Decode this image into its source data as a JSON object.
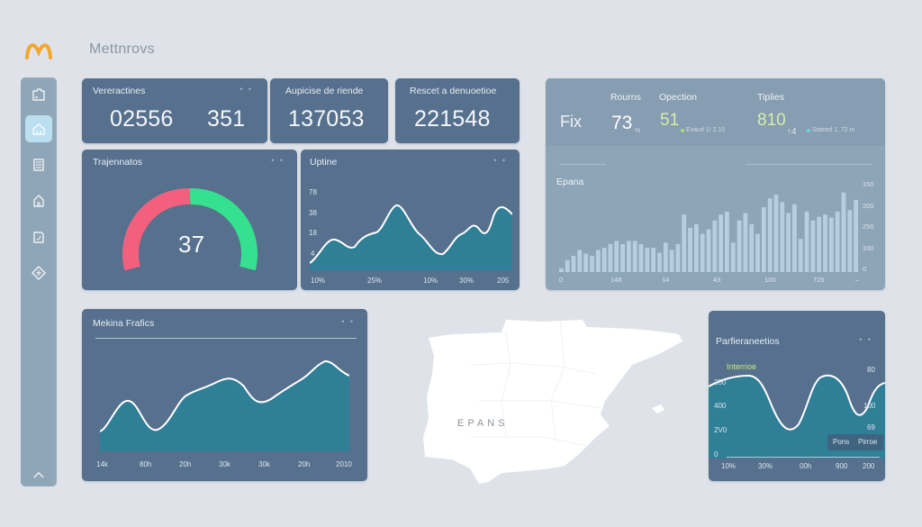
{
  "app": {
    "title": "Mettnrovs",
    "logo_icon": "m-arch-logo"
  },
  "sidebar": {
    "items": [
      {
        "name": "folder-icon",
        "active": false
      },
      {
        "name": "home-icon",
        "active": true
      },
      {
        "name": "document-icon",
        "active": false
      },
      {
        "name": "building-icon",
        "active": false
      },
      {
        "name": "file-chart-icon",
        "active": false
      },
      {
        "name": "puzzle-icon",
        "active": false
      }
    ],
    "collapse_icon": "chevron-up-icon"
  },
  "kpis": [
    {
      "title": "Vereractines",
      "values": [
        "02556",
        "351"
      ],
      "menu": "• •"
    },
    {
      "title": "Aupicise de riende",
      "values": [
        "137053"
      ]
    },
    {
      "title": "Rescet a denuoetioe",
      "values": [
        "221548"
      ]
    }
  ],
  "gauge": {
    "title": "Trajennatos",
    "value": "37",
    "menu": "• •",
    "colors": {
      "left": "#f2607e",
      "right": "#35e08e"
    }
  },
  "uptime": {
    "title": "Uptine",
    "menu": "• •",
    "y_ticks": [
      "78",
      "38",
      "18",
      "4",
      "5"
    ],
    "x_ticks": [
      "10%",
      "25%",
      "10%",
      "30%",
      "205"
    ]
  },
  "stats_panel": {
    "row_label": "Fix",
    "columns": [
      {
        "label": "Rourns",
        "value": "73",
        "unit": "%",
        "color": "#ffffff"
      },
      {
        "label": "Opection",
        "value": "51",
        "sub": "Exaud 1/ 2.10",
        "sub_dot_color": "#a8e070",
        "color": "#d4f0a8"
      },
      {
        "label": "Tiplies",
        "value": "810",
        "unit": "↑4",
        "sub": "Staeed 1, 72 m",
        "sub_dot_color": "#6fd4d4",
        "color": "#d4f0a8"
      }
    ],
    "chart_title": "Epana",
    "y_ticks": [
      "150",
      "200",
      "250",
      "100",
      "0"
    ],
    "x_ticks": [
      "0",
      "148",
      "14",
      "43",
      "100",
      "725",
      "–"
    ]
  },
  "metrics": {
    "title": "Mekina Frafics",
    "menu": "• •",
    "x_ticks": [
      "14k",
      "80h",
      "20h",
      "30k",
      "30k",
      "20h",
      "2010"
    ]
  },
  "map": {
    "label": "EPANS"
  },
  "performance": {
    "title": "Parfieraneetios",
    "menu": "• •",
    "series_label": "Interrioe",
    "y_left": [
      "200",
      "400",
      "2V0",
      "0"
    ],
    "y_right": [
      "80",
      "100",
      "69"
    ],
    "x_ticks": [
      "10%",
      "30%",
      "00h",
      "900",
      "200"
    ],
    "legend": [
      "Pons",
      "Pirroe"
    ]
  },
  "chart_data": [
    {
      "type": "area",
      "title": "Uptine",
      "x": [
        "10%",
        "25%",
        "10%",
        "30%",
        "205"
      ],
      "values": [
        5,
        22,
        15,
        28,
        30,
        58,
        42,
        25,
        18,
        33,
        40,
        50,
        38,
        62,
        50
      ],
      "y_ticks": [
        "5",
        "4",
        "18",
        "38",
        "78"
      ]
    },
    {
      "type": "bar",
      "title": "Epana",
      "x_ticks": [
        "0",
        "148",
        "14",
        "43",
        "100",
        "725",
        "–"
      ],
      "values": [
        5,
        16,
        22,
        30,
        25,
        22,
        30,
        33,
        38,
        42,
        38,
        42,
        42,
        38,
        33,
        33,
        26,
        40,
        30,
        38,
        78,
        60,
        65,
        52,
        58,
        70,
        78,
        82,
        40,
        70,
        80,
        65,
        52,
        88,
        100,
        105,
        95,
        80,
        92,
        45,
        82,
        70,
        75,
        78,
        74,
        82,
        108,
        84,
        98
      ],
      "y_ticks": [
        "0",
        "100",
        "250",
        "200",
        "150"
      ]
    },
    {
      "type": "area",
      "title": "Mekina Frafics",
      "x": [
        "14k",
        "80h",
        "20h",
        "30k",
        "30k",
        "20h",
        "2010"
      ],
      "values": [
        20,
        52,
        22,
        58,
        70,
        78,
        55,
        75,
        95,
        78
      ],
      "ylim": [
        0,
        110
      ]
    },
    {
      "type": "area",
      "title": "Parfieraneetios",
      "x": [
        "10%",
        "30%",
        "00h",
        "900",
        "200"
      ],
      "series": [
        {
          "name": "Interrioe",
          "values": [
            78,
            85,
            40,
            95,
            62,
            92
          ]
        }
      ],
      "y_left": [
        "0",
        "2V0",
        "400",
        "200"
      ],
      "y_right": [
        "69",
        "100",
        "80"
      ],
      "legend": [
        "Pons",
        "Pirroe"
      ]
    },
    {
      "type": "gauge",
      "title": "Trajennatos",
      "value": 37
    }
  ]
}
